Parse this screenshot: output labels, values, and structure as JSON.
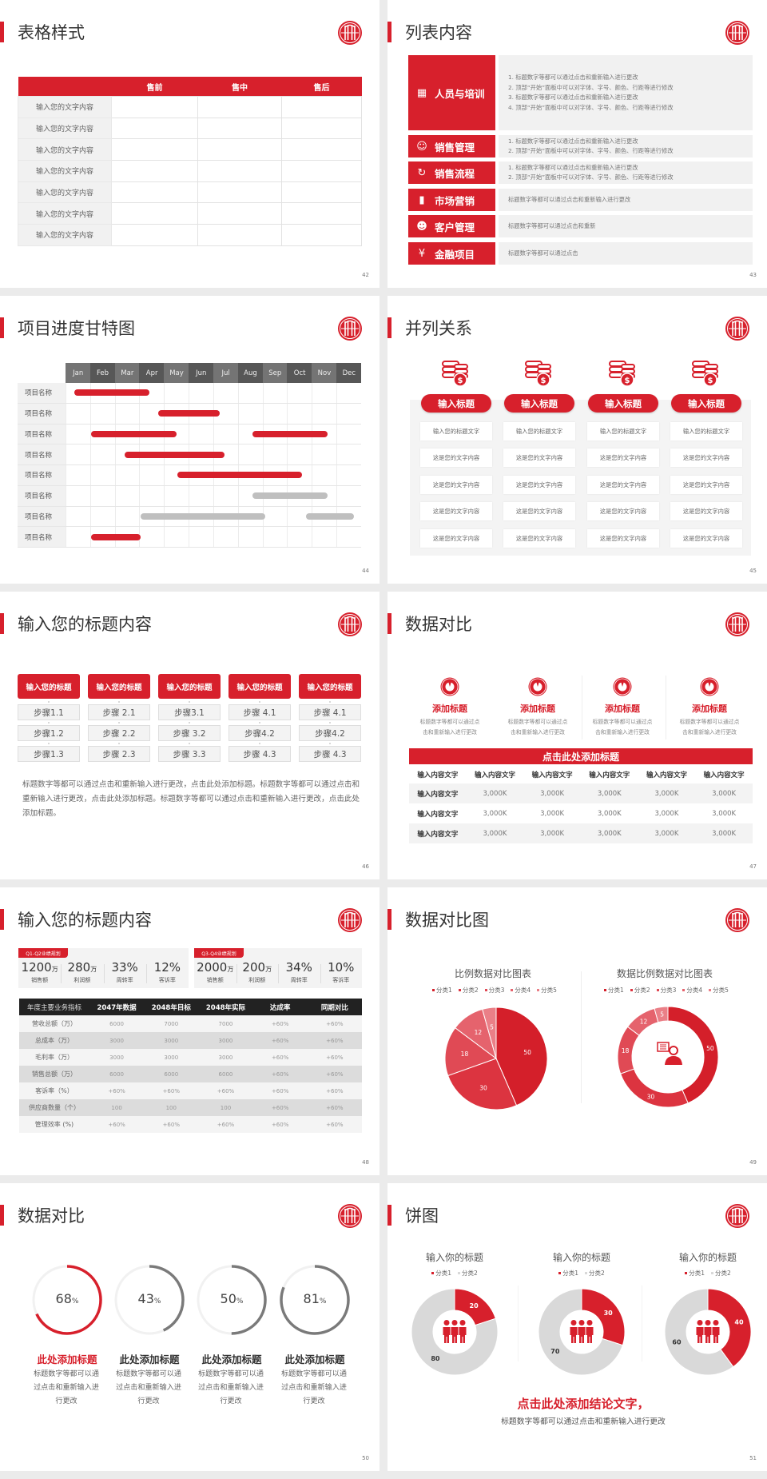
{
  "colors": {
    "accent": "#d7202c",
    "dark": "#333333",
    "muted": "#777777",
    "grey_series": "#d9d9d9",
    "panel": "#f2f2f2"
  },
  "slides": [
    {
      "page": "42",
      "title": "表格样式",
      "table": {
        "headers": [
          "",
          "售前",
          "售中",
          "售后"
        ],
        "rows": [
          "输入您的文字内容",
          "输入您的文字内容",
          "输入您的文字内容",
          "输入您的文字内容",
          "输入您的文字内容",
          "输入您的文字内容",
          "输入您的文字内容"
        ]
      }
    },
    {
      "page": "43",
      "title": "列表内容",
      "items": [
        {
          "label": "人员与培训",
          "icon": "training-icon",
          "lines": [
            "1.   标题数字等都可以通过点击和重新输入进行更改",
            "2.   顶部“开始”面板中可以对字体、字号、颜色、行距等进行修改",
            "3.   标题数字等都可以通过点击和重新输入进行更改",
            "4.   顶部“开始”面板中可以对字体、字号、颜色、行距等进行修改"
          ]
        },
        {
          "label": "销售管理",
          "icon": "sales-manager-icon",
          "lines": [
            "1.   标题数字等都可以通过点击和重新输入进行更改",
            "2.   顶部“开始”面板中可以对字体、字号、颜色、行距等进行修改"
          ]
        },
        {
          "label": "销售流程",
          "icon": "process-cycle-icon",
          "lines": [
            "1.   标题数字等都可以通过点击和重新输入进行更改",
            "2.   顶部“开始”面板中可以对字体、字号、颜色、行距等进行修改"
          ]
        },
        {
          "label": "市场营销",
          "icon": "bar-chart-icon",
          "lines": [
            "标题数字等都可以通过点击和重新输入进行更改"
          ]
        },
        {
          "label": "客户管理",
          "icon": "customers-icon",
          "lines": [
            "标题数字等都可以通过点击和重新"
          ]
        },
        {
          "label": "金融项目",
          "icon": "finance-icon",
          "lines": [
            "标题数字等都可以通过点击"
          ]
        }
      ]
    },
    {
      "page": "44",
      "title": "项目进度甘特图"
    },
    {
      "page": "45",
      "title": "并列关系",
      "columns": [
        {
          "heading": "输入标题",
          "cells": [
            "输入您的标题文字",
            "这是您的文字内容",
            "这是您的文字内容",
            "这是您的文字内容",
            "这是您的文字内容"
          ]
        },
        {
          "heading": "输入标题",
          "cells": [
            "输入您的标题文字",
            "这是您的文字内容",
            "这是您的文字内容",
            "这是您的文字内容",
            "这是您的文字内容"
          ]
        },
        {
          "heading": "输入标题",
          "cells": [
            "输入您的标题文字",
            "这是您的文字内容",
            "这是您的文字内容",
            "这是您的文字内容",
            "这是您的文字内容"
          ]
        },
        {
          "heading": "输入标题",
          "cells": [
            "输入您的标题文字",
            "这是您的文字内容",
            "这是您的文字内容",
            "这是您的文字内容",
            "这是您的文字内容"
          ]
        }
      ]
    },
    {
      "page": "46",
      "title": "输入您的标题内容",
      "columns": [
        {
          "heading": "输入您的标题",
          "steps": [
            "步骤1.1",
            "步骤1.2",
            "步骤1.3"
          ]
        },
        {
          "heading": "输入您的标题",
          "steps": [
            "步骤 2.1",
            "步骤 2.2",
            "步骤 2.3"
          ]
        },
        {
          "heading": "输入您的标题",
          "steps": [
            "步骤3.1",
            "步骤 3.2",
            "步骤 3.3"
          ]
        },
        {
          "heading": "输入您的标题",
          "steps": [
            "步骤 4.1",
            "步骤4.2",
            "步骤 4.3"
          ]
        },
        {
          "heading": "输入您的标题",
          "steps": [
            "步骤 4.1",
            "步骤4.2",
            "步骤 4.3"
          ]
        }
      ],
      "paragraph": "标题数字等都可以通过点击和重新输入进行更改，点击此处添加标题。标题数字等都可以通过点击和重新输入进行更改，点击此处添加标题。标题数字等都可以通过点击和重新输入进行更改，点击此处添加标题。"
    },
    {
      "page": "47",
      "title": "数据对比",
      "features": [
        {
          "title": "添加标题",
          "desc": [
            "标题数字等都可以通过点",
            "击和重新输入进行更改"
          ]
        },
        {
          "title": "添加标题",
          "desc": [
            "标题数字等都可以通过点",
            "击和重新输入进行更改"
          ]
        },
        {
          "title": "添加标题",
          "desc": [
            "标题数字等都可以通过点",
            "击和重新输入进行更改"
          ]
        },
        {
          "title": "添加标题",
          "desc": [
            "标题数字等都可以通过点",
            "击和重新输入进行更改"
          ]
        }
      ],
      "banner": "点击此处添加标题",
      "table": {
        "headers": [
          "输入内容文字",
          "输入内容文字",
          "输入内容文字",
          "输入内容文字",
          "输入内容文字",
          "输入内容文字"
        ],
        "rows": [
          [
            "输入内容文字",
            "3,000K",
            "3,000K",
            "3,000K",
            "3,000K",
            "3,000K"
          ],
          [
            "输入内容文字",
            "3,000K",
            "3,000K",
            "3,000K",
            "3,000K",
            "3,000K"
          ],
          [
            "输入内容文字",
            "3,000K",
            "3,000K",
            "3,000K",
            "3,000K",
            "3,000K"
          ]
        ]
      }
    },
    {
      "page": "48",
      "title": "输入您的标题内容",
      "kpi_panels": [
        {
          "tag": "Q1-Q2业绩规划",
          "items": [
            {
              "value": "1200",
              "unit": "万",
              "label": "销售额"
            },
            {
              "value": "280",
              "unit": "万",
              "label": "利润额"
            },
            {
              "value": "33%",
              "unit": "",
              "label": "周转率"
            },
            {
              "value": "12%",
              "unit": "",
              "label": "客诉率"
            }
          ]
        },
        {
          "tag": "Q3-Q4业绩规划",
          "items": [
            {
              "value": "2000",
              "unit": "万",
              "label": "销售额"
            },
            {
              "value": "200",
              "unit": "万",
              "label": "利润额"
            },
            {
              "value": "34%",
              "unit": "",
              "label": "周转率"
            },
            {
              "value": "10%",
              "unit": "",
              "label": "客诉率"
            }
          ]
        }
      ],
      "table": {
        "headers": [
          "年度主要业务指标",
          "2047年数据",
          "2048年目标",
          "2048年实际",
          "达成率",
          "同期对比"
        ],
        "rows": [
          [
            "营收总额（万）",
            "6000",
            "7000",
            "7000",
            "+60%",
            "+60%"
          ],
          [
            "总成本（万）",
            "3000",
            "3000",
            "3000",
            "+60%",
            "+60%"
          ],
          [
            "毛利率（万）",
            "3000",
            "3000",
            "3000",
            "+60%",
            "+60%"
          ],
          [
            "销售总额（万）",
            "6000",
            "6000",
            "6000",
            "+60%",
            "+60%"
          ],
          [
            "客诉率（%）",
            "+60%",
            "+60%",
            "+60%",
            "+60%",
            "+60%"
          ],
          [
            "供应商数量（个）",
            "100",
            "100",
            "100",
            "+60%",
            "+60%"
          ],
          [
            "管理效率 (%)",
            "+60%",
            "+60%",
            "+60%",
            "+60%",
            "+60%"
          ]
        ]
      }
    },
    {
      "page": "49",
      "title": "数据对比图"
    },
    {
      "page": "50",
      "title": "数据对比",
      "rings": [
        {
          "value": 68,
          "unit": "%",
          "title": "此处添加标题",
          "desc": "标题数字等都可以通过点击和重新输入进行更改",
          "highlight": true
        },
        {
          "value": 43,
          "unit": "%",
          "title": "此处添加标题",
          "desc": "标题数字等都可以通过点击和重新输入进行更改",
          "highlight": false
        },
        {
          "value": 50,
          "unit": "%",
          "title": "此处添加标题",
          "desc": "标题数字等都可以通过点击和重新输入进行更改",
          "highlight": false
        },
        {
          "value": 81,
          "unit": "%",
          "title": "此处添加标题",
          "desc": "标题数字等都可以通过点击和重新输入进行更改",
          "highlight": false
        }
      ]
    },
    {
      "page": "51",
      "title": "饼图",
      "conclusion": "点击此处添加结论文字，",
      "sub": "标题数字等都可以通过点击和重新输入进行更改"
    }
  ],
  "chart_data": [
    {
      "type": "gantt",
      "slide": "44",
      "categories": [
        "Jan",
        "Feb",
        "Mar",
        "Apr",
        "May",
        "Jun",
        "Jul",
        "Aug",
        "Sep",
        "Oct",
        "Nov",
        "Dec"
      ],
      "rows": [
        {
          "label": "项目名称",
          "bars": [
            {
              "start": 0.35,
              "end": 3.4,
              "status": "active"
            }
          ]
        },
        {
          "label": "项目名称",
          "bars": [
            {
              "start": 3.75,
              "end": 6.25,
              "status": "active"
            }
          ]
        },
        {
          "label": "项目名称",
          "bars": [
            {
              "start": 1.05,
              "end": 4.5,
              "status": "active"
            },
            {
              "start": 7.6,
              "end": 10.65,
              "status": "active"
            }
          ]
        },
        {
          "label": "项目名称",
          "bars": [
            {
              "start": 2.4,
              "end": 6.45,
              "status": "active"
            }
          ]
        },
        {
          "label": "项目名称",
          "bars": [
            {
              "start": 4.55,
              "end": 9.6,
              "status": "active"
            }
          ]
        },
        {
          "label": "项目名称",
          "bars": [
            {
              "start": 7.6,
              "end": 10.65,
              "status": "planned"
            }
          ]
        },
        {
          "label": "项目名称",
          "bars": [
            {
              "start": 3.05,
              "end": 8.1,
              "status": "planned"
            },
            {
              "start": 9.75,
              "end": 11.7,
              "status": "planned"
            }
          ]
        },
        {
          "label": "项目名称",
          "bars": [
            {
              "start": 1.05,
              "end": 3.05,
              "status": "active"
            }
          ]
        }
      ],
      "colors": {
        "active": "#d7202c",
        "planned": "#bfbfbf"
      }
    },
    {
      "type": "pie",
      "slide": "49",
      "title": "比例数据对比图表",
      "legend": "top",
      "categories": [
        "分类1",
        "分类2",
        "分类3",
        "分类4",
        "分类5"
      ],
      "values": [
        50,
        30,
        18,
        12,
        5
      ],
      "colors": [
        "#d41f2a",
        "#dc3440",
        "#e04a55",
        "#e5636d",
        "#ea7f87"
      ]
    },
    {
      "type": "donut",
      "slide": "49",
      "title": "数据比例数据对比图表",
      "legend": "top",
      "categories": [
        "分类1",
        "分类2",
        "分类3",
        "分类4",
        "分类5"
      ],
      "values": [
        50,
        30,
        18,
        12,
        5
      ],
      "colors": [
        "#d41f2a",
        "#dc3440",
        "#e04a55",
        "#e5636d",
        "#ea7f87"
      ]
    },
    {
      "type": "donut",
      "slide": "51",
      "title": "输入你的标题",
      "legend": "top",
      "categories": [
        "分类1",
        "分类2"
      ],
      "values": [
        20,
        80
      ],
      "colors": [
        "#d7202c",
        "#d9d9d9"
      ]
    },
    {
      "type": "donut",
      "slide": "51",
      "title": "输入你的标题",
      "legend": "top",
      "categories": [
        "分类1",
        "分类2"
      ],
      "values": [
        30,
        70
      ],
      "colors": [
        "#d7202c",
        "#d9d9d9"
      ]
    },
    {
      "type": "donut",
      "slide": "51",
      "title": "输入你的标题",
      "legend": "top",
      "categories": [
        "分类1",
        "分类2"
      ],
      "values": [
        40,
        60
      ],
      "colors": [
        "#d7202c",
        "#d9d9d9"
      ]
    }
  ]
}
